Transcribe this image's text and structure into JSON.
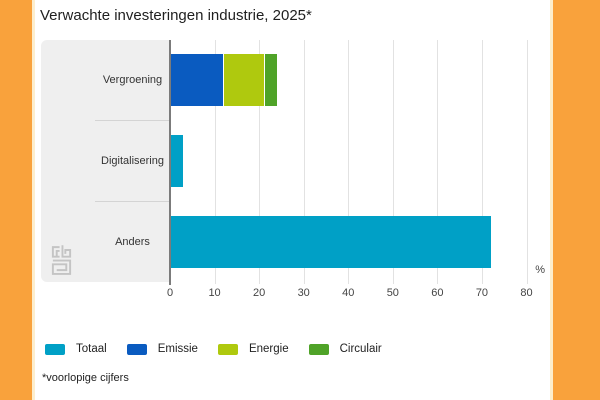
{
  "title": "Verwachte investeringen industrie, 2025*",
  "footnote": "*voorlopige cijfers",
  "brand": {
    "accent_orange": "#F9A23C",
    "accent_edge": "#FDEECD",
    "panel_gray": "#EFEFEF",
    "logo": "cbs-logo"
  },
  "chart_data": {
    "type": "bar",
    "orientation": "horizontal",
    "stacked": true,
    "title": "Verwachte investeringen industrie, 2025*",
    "categories": [
      "Vergroening",
      "Digitalisering",
      "Anders"
    ],
    "series": [
      {
        "name": "Totaal",
        "color": "#00A0C6",
        "values": [
          null,
          3,
          72
        ]
      },
      {
        "name": "Emissie",
        "color": "#0A5BC0",
        "values": [
          12,
          null,
          null
        ]
      },
      {
        "name": "Energie",
        "color": "#AFC90E",
        "values": [
          9,
          null,
          null
        ]
      },
      {
        "name": "Circulair",
        "color": "#4FA328",
        "values": [
          3,
          null,
          null
        ]
      }
    ],
    "xlabel": "%",
    "xlim": [
      0,
      80
    ],
    "xticks": [
      0,
      10,
      20,
      30,
      40,
      50,
      60,
      70,
      80
    ],
    "grid": true,
    "legend_position": "bottom"
  }
}
